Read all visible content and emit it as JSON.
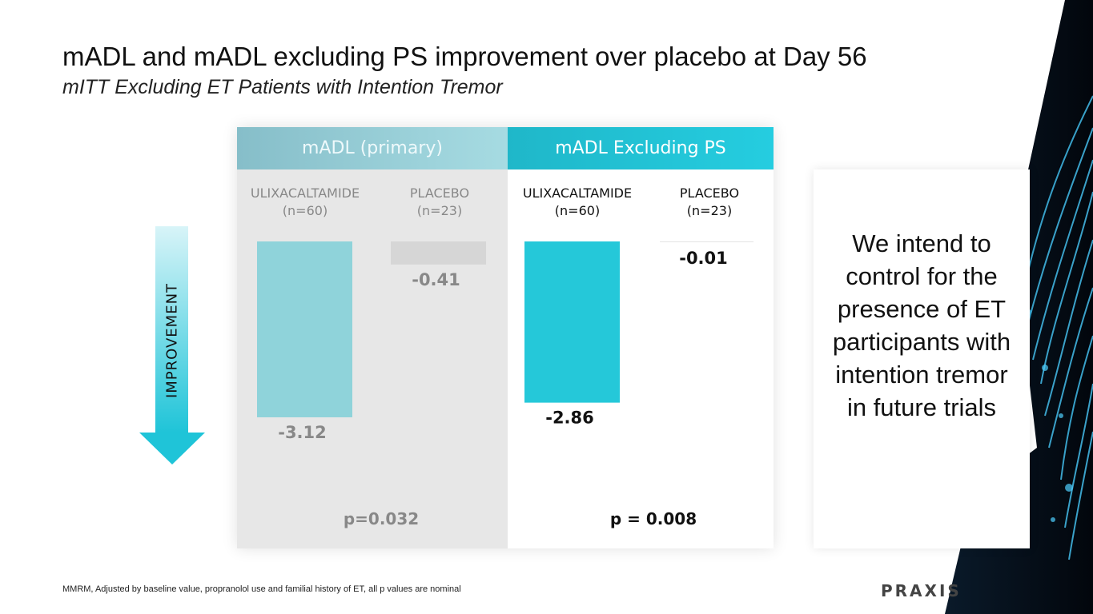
{
  "title": "mADL and mADL excluding PS improvement over placebo at Day 56",
  "subtitle": "mITT Excluding ET Patients with Intention Tremor",
  "arrow_label": "IMPROVEMENT",
  "side_text": "We intend to control for the presence of ET participants with intention tremor in future trials",
  "footnote": "MMRM, Adjusted by baseline value, propranolol use and familial history of ET, all p values are nominal",
  "logo_text": "PRAXIS",
  "colors": {
    "primary_bar": "#8fd3da",
    "placebo_primary_bar": "#d6d6d6",
    "excl_bar": "#25c8d9",
    "placebo_excl_line": "#e4e4e4"
  },
  "chart_data": [
    {
      "type": "bar",
      "title": "mADL (primary)",
      "categories": [
        "ULIXACALTAMIDE",
        "PLACEBO"
      ],
      "category_n": [
        "(n=60)",
        "(n=23)"
      ],
      "values": [
        -3.12,
        -0.41
      ],
      "value_labels": [
        "-3.12",
        "-0.41"
      ],
      "ylim": [
        -3.5,
        0
      ],
      "p_value": "p=0.032"
    },
    {
      "type": "bar",
      "title": "mADL Excluding PS",
      "categories": [
        "ULIXACALTAMIDE",
        "PLACEBO"
      ],
      "category_n": [
        "(n=60)",
        "(n=23)"
      ],
      "values": [
        -2.86,
        -0.01
      ],
      "value_labels": [
        "-2.86",
        "-0.01"
      ],
      "ylim": [
        -3.5,
        0
      ],
      "p_value": "p = 0.008"
    }
  ]
}
